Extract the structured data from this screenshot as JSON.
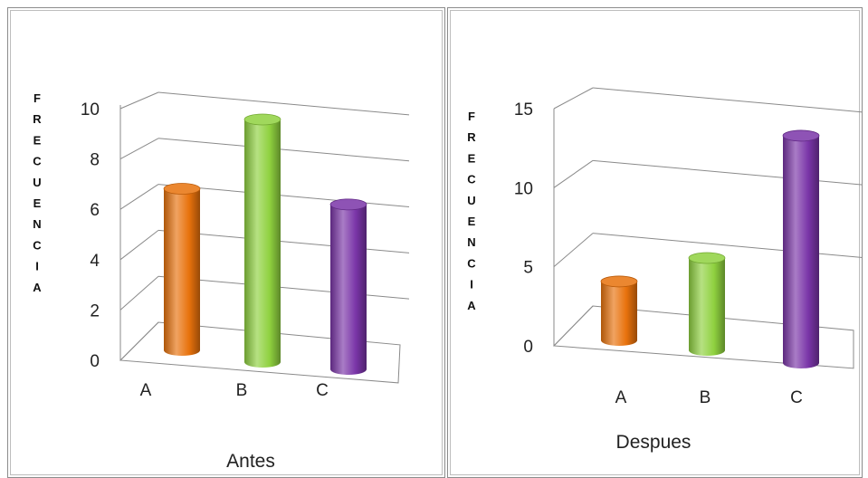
{
  "chart_data": [
    {
      "type": "bar",
      "title": "",
      "xlabel": "Antes",
      "ylabel": "FRECUENCIA",
      "categories": [
        "A",
        "B",
        "C"
      ],
      "values": [
        7,
        10,
        6.6
      ],
      "ylim": [
        0,
        10
      ],
      "yticks": [
        0,
        2,
        4,
        6,
        8,
        10
      ],
      "grid": true,
      "style": "3d-cylinder",
      "colors": [
        "#e8720c",
        "#8fd13f",
        "#7a35a8"
      ]
    },
    {
      "type": "bar",
      "title": "",
      "xlabel": "Despues",
      "ylabel": "FRECUENCIA",
      "categories": [
        "A",
        "B",
        "C"
      ],
      "values": [
        4,
        6,
        14
      ],
      "ylim": [
        0,
        15
      ],
      "yticks": [
        0,
        5,
        10,
        15
      ],
      "grid": true,
      "style": "3d-cylinder",
      "colors": [
        "#e8720c",
        "#8fd13f",
        "#7a35a8"
      ]
    }
  ]
}
